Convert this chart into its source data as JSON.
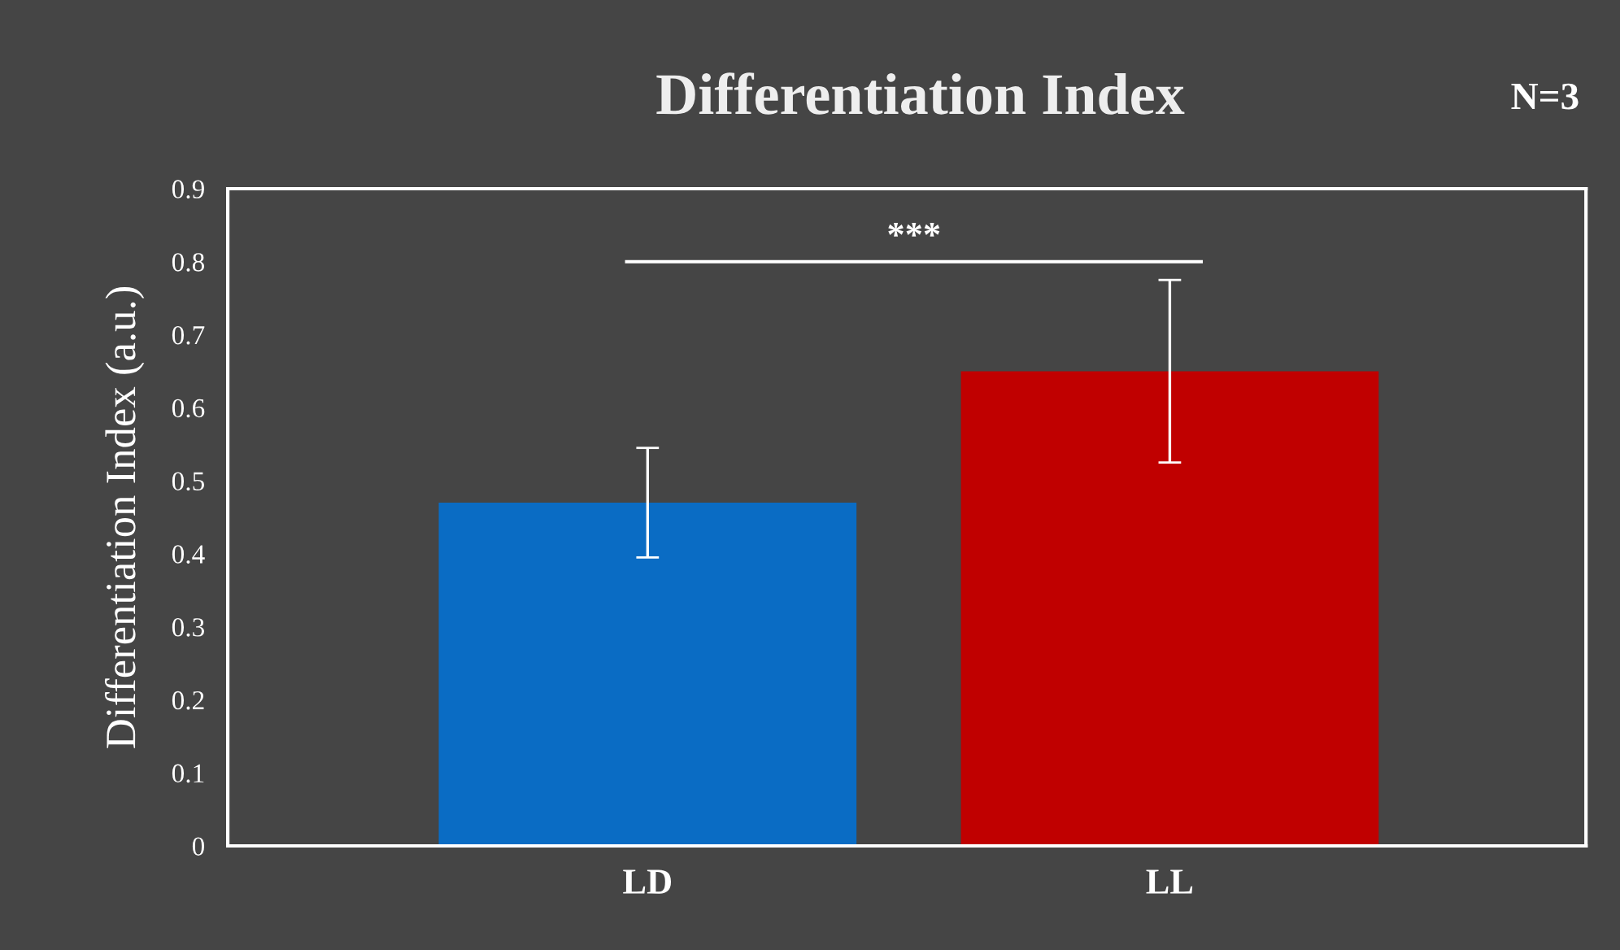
{
  "chart_data": {
    "type": "bar",
    "title": "Differentiation Index",
    "ylabel": "Differentiation Index (a.u.)",
    "categories": [
      "LD",
      "LL"
    ],
    "values": [
      0.47,
      0.65
    ],
    "colors": [
      "#0a6cc4",
      "#c00000"
    ],
    "errors": [
      0.075,
      0.125
    ],
    "ylim": [
      0,
      0.9
    ],
    "yticks": [
      0,
      0.1,
      0.2,
      0.3,
      0.4,
      0.5,
      0.6,
      0.7,
      0.8,
      0.9
    ],
    "grid": false,
    "legend": false,
    "annotations": [
      "***",
      "N=3"
    ]
  }
}
